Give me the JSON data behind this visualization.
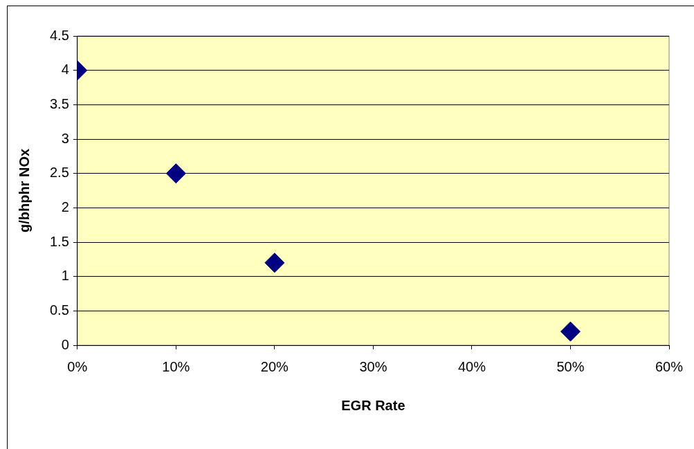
{
  "chart_data": {
    "type": "scatter",
    "xlabel": "EGR Rate",
    "ylabel": "g/bhphr NOx",
    "x": [
      0,
      10,
      20,
      50
    ],
    "series": [
      {
        "color": "#000080",
        "values": [
          4,
          2.5,
          1.2,
          0.2
        ]
      }
    ],
    "marker": "diamond",
    "grid": "y",
    "legend": false,
    "xlim": [
      0,
      60
    ],
    "ylim": [
      0,
      4.5
    ],
    "xticks": [
      {
        "value": 0,
        "label": "0%"
      },
      {
        "value": 10,
        "label": "10%"
      },
      {
        "value": 20,
        "label": "20%"
      },
      {
        "value": 30,
        "label": "30%"
      },
      {
        "value": 40,
        "label": "40%"
      },
      {
        "value": 50,
        "label": "50%"
      },
      {
        "value": 60,
        "label": "60%"
      }
    ],
    "yticks": [
      0,
      0.5,
      1,
      1.5,
      2,
      2.5,
      3,
      3.5,
      4,
      4.5
    ]
  }
}
